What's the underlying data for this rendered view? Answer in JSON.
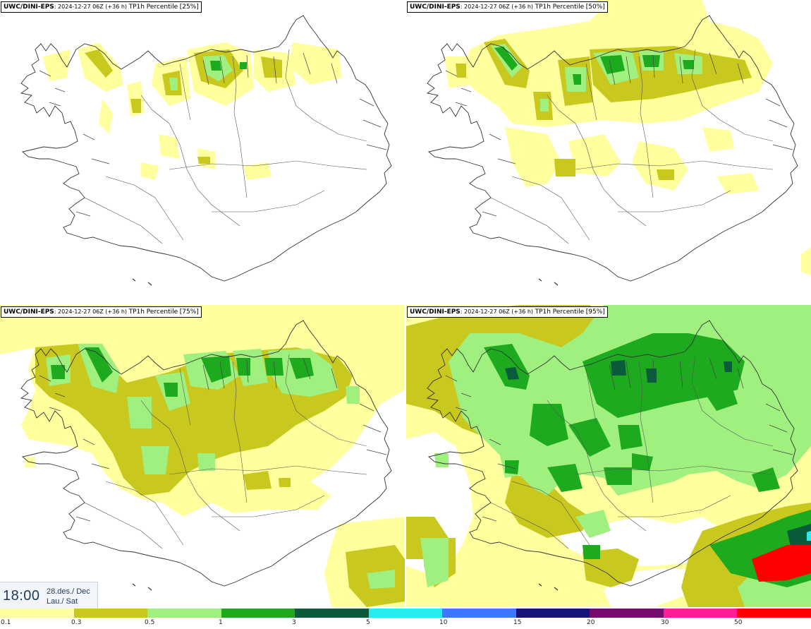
{
  "panels": [
    {
      "model": "UWC/DINI-EPS",
      "run": "2024-12-27 06Z (+36 h)",
      "variable": "TP1h Percentile",
      "percentile": "[25%]"
    },
    {
      "model": "UWC/DINI-EPS",
      "run": "2024-12-27 06Z (+36 h)",
      "variable": "TP1h Percentile",
      "percentile": "[50%]"
    },
    {
      "model": "UWC/DINI-EPS",
      "run": "2024-12-27 06Z (+36 h)",
      "variable": "TP1h Percentile",
      "percentile": "[75%]"
    },
    {
      "model": "UWC/DINI-EPS",
      "run": "2024-12-27 06Z (+36 h)",
      "variable": "TP1h Percentile",
      "percentile": "[95%]"
    }
  ],
  "valid_time": {
    "time": "18:00",
    "date_line1": "28.des./ Dec",
    "date_line2": "Lau./ Sat"
  },
  "legend": {
    "ticks": [
      "0.1",
      "0.3",
      "0.5",
      "1",
      "3",
      "5",
      "10",
      "15",
      "20",
      "30",
      "50"
    ],
    "colors": [
      "#ffff9e",
      "#c8c81e",
      "#a0f080",
      "#1eaa1e",
      "#0a5a3c",
      "#28ebeb",
      "#3c78ff",
      "#14147a",
      "#780a6e",
      "#ff1e96",
      "#ff0000"
    ]
  },
  "map_colors": {
    "level1": "#ffff9e",
    "level2": "#c8c81e",
    "level3": "#a0f080",
    "level4": "#1eaa1e",
    "level5": "#0a5a3c",
    "level6": "#28ebeb",
    "level10": "#ff0000"
  }
}
